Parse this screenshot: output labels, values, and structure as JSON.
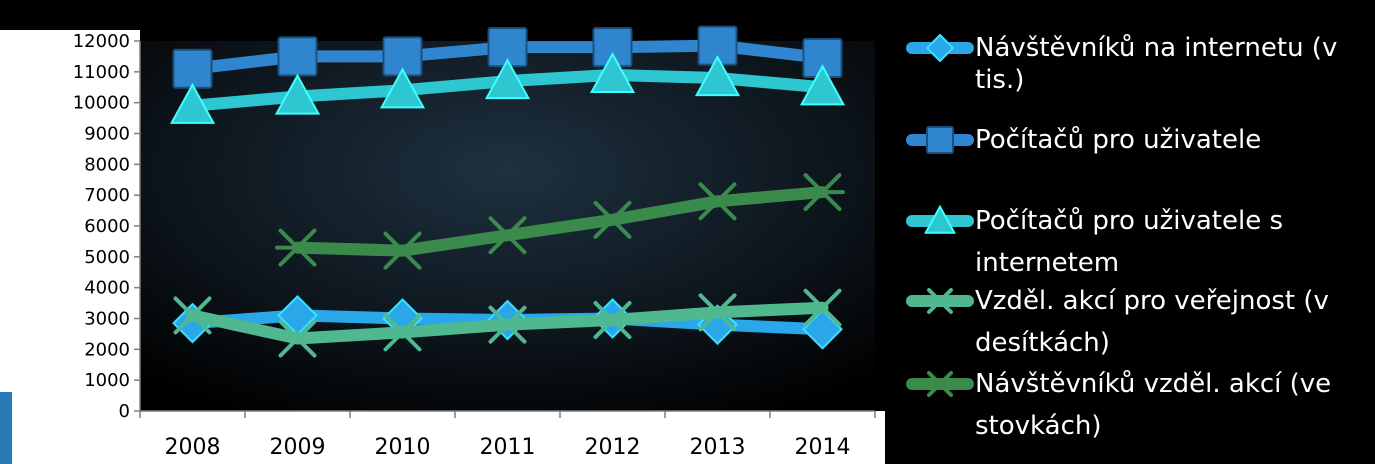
{
  "chart_data": {
    "type": "line",
    "title": "",
    "xlabel": "",
    "ylabel": "",
    "categories": [
      "2008",
      "2009",
      "2010",
      "2011",
      "2012",
      "2013",
      "2014"
    ],
    "ylim": [
      0,
      12000
    ],
    "y_ticks": [
      0,
      1000,
      2000,
      3000,
      4000,
      5000,
      6000,
      7000,
      8000,
      9000,
      10000,
      11000,
      12000
    ],
    "grid": false,
    "legend_position": "right",
    "series": [
      {
        "name": "Návštěvníků na internetu (v tis.)",
        "legend_lines": [
          "Návštěvníků na internetu (v",
          "tis.)"
        ],
        "marker": "diamond",
        "color": "#2aa7e8",
        "values": [
          2850,
          3100,
          3000,
          2950,
          3000,
          2800,
          2650
        ]
      },
      {
        "name": "Počítačů pro uživatele",
        "legend_lines": [
          "Počítačů pro uživatele"
        ],
        "marker": "square",
        "color": "#2f86cf",
        "values": [
          11100,
          11500,
          11500,
          11800,
          11800,
          11850,
          11450
        ]
      },
      {
        "name": "Počítačů pro uživatele s internetem",
        "legend_lines": [
          "Počítačů pro uživatele s",
          "internetem"
        ],
        "marker": "triangle",
        "color": "#2ec7d1",
        "values": [
          9900,
          10200,
          10400,
          10700,
          10900,
          10800,
          10500
        ]
      },
      {
        "name": "Vzděl. akcí pro veřejnost (v desítkách)",
        "legend_lines": [
          "Vzděl. akcí pro veřejnost (v",
          "desítkách)"
        ],
        "marker": "x",
        "color": "#4fb88f",
        "values": [
          3100,
          2350,
          2550,
          2800,
          2950,
          3200,
          3350
        ]
      },
      {
        "name": "Návštěvníků vzděl. akcí (ve stovkách)",
        "legend_lines": [
          "Návštěvníků vzděl. akcí (ve",
          "stovkách)"
        ],
        "marker": "star",
        "color": "#3a8a4c",
        "values": [
          null,
          5300,
          5200,
          5700,
          6200,
          6800,
          7100
        ]
      }
    ]
  }
}
